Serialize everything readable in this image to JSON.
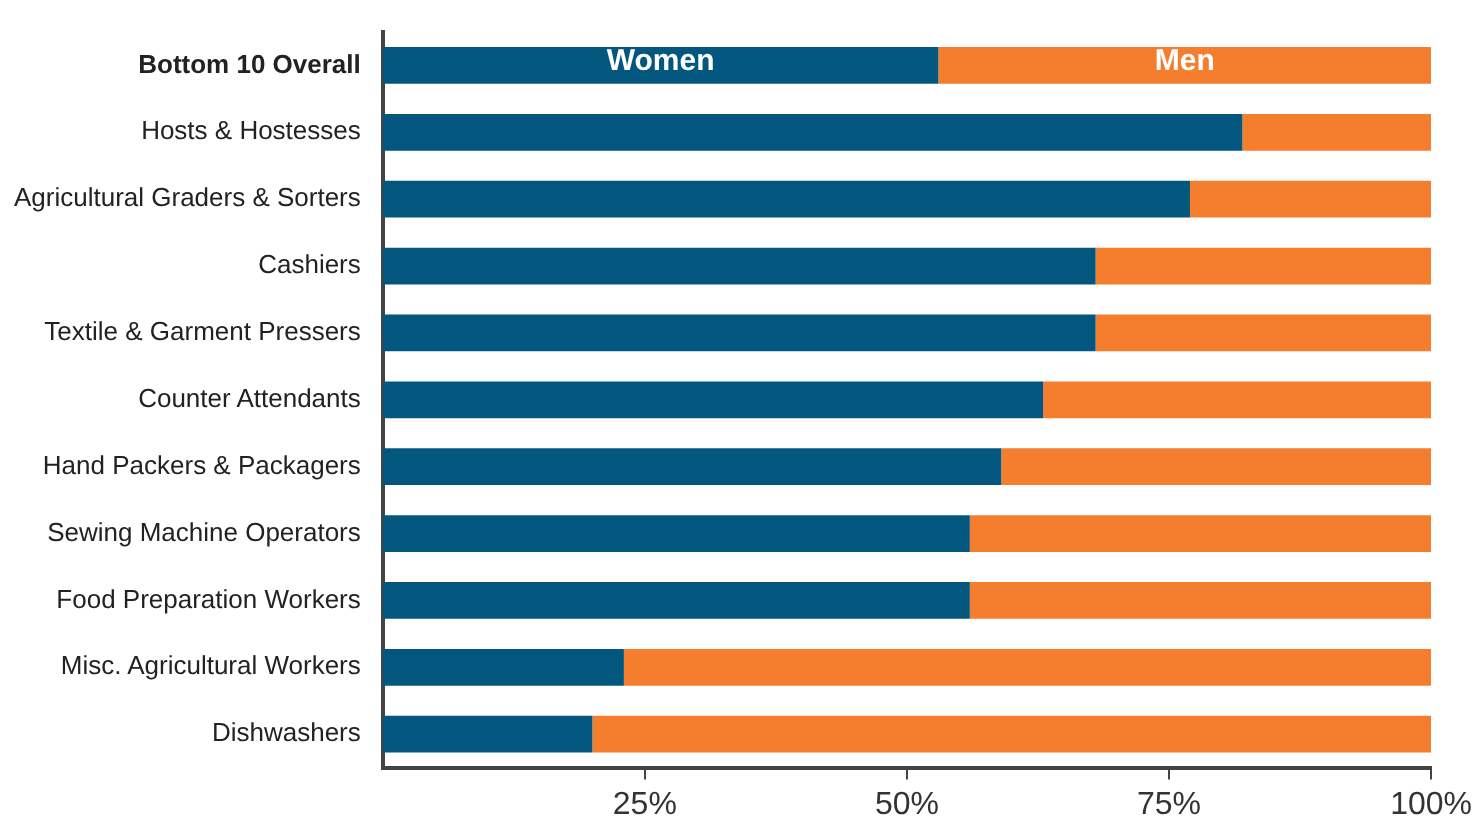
{
  "chart_data": {
    "type": "bar",
    "orientation": "horizontal",
    "stacked": true,
    "categories": [
      "Bottom 10 Overall",
      "Hosts & Hostesses",
      "Agricultural Graders & Sorters",
      "Cashiers",
      "Textile & Garment Pressers",
      "Counter Attendants",
      "Hand Packers & Packagers",
      "Sewing Machine Operators",
      "Food Preparation Workers",
      "Misc. Agricultural Workers",
      "Dishwashers"
    ],
    "series": [
      {
        "name": "Women",
        "color": "#03577f",
        "values": [
          53,
          82,
          77,
          68,
          68,
          63,
          59,
          56,
          56,
          23,
          20
        ]
      },
      {
        "name": "Men",
        "color": "#f47e2e",
        "values": [
          47,
          18,
          23,
          32,
          32,
          37,
          41,
          44,
          44,
          77,
          80
        ]
      }
    ],
    "xlim": [
      0,
      100
    ],
    "xticks": [
      {
        "value": 25,
        "label": "25%"
      },
      {
        "value": 50,
        "label": "50%"
      },
      {
        "value": 75,
        "label": "75%"
      },
      {
        "value": 100,
        "label": "100%"
      }
    ],
    "grid": false,
    "legend": false
  }
}
